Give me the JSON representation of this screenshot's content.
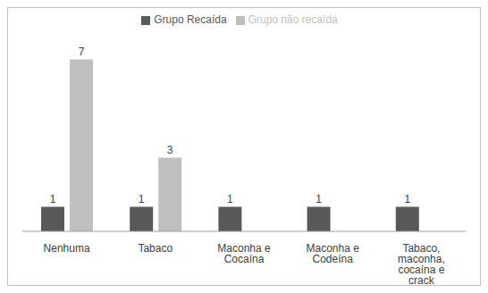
{
  "chart_data": {
    "type": "bar",
    "categories": [
      "Nenhuma",
      "Tabaco",
      "Maconha e Cocaína",
      "Maconha e Codeína",
      "Tabaco, maconha, cocaína e crack"
    ],
    "series": [
      {
        "name": "Grupo Recaída",
        "color": "#595959",
        "values": [
          1,
          1,
          1,
          1,
          1
        ]
      },
      {
        "name": "Grupo não recaída",
        "color": "#bfbfbf",
        "values": [
          7,
          3,
          null,
          null,
          null
        ]
      }
    ],
    "ylim": [
      0,
      8
    ],
    "grid": false,
    "legend": "top",
    "data_labels": true,
    "tick_labels": "x"
  }
}
